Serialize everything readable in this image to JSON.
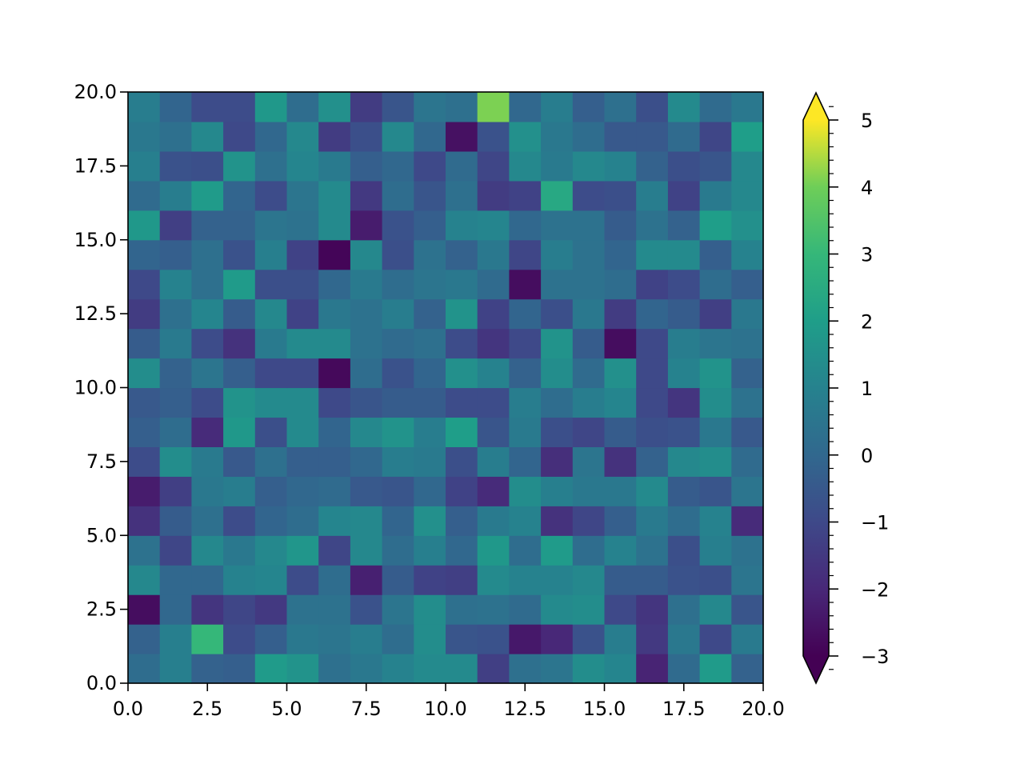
{
  "chart_data": {
    "type": "heatmap",
    "title": "",
    "xlabel": "",
    "ylabel": "",
    "x_range": [
      0,
      20
    ],
    "y_range": [
      0,
      20
    ],
    "grid": false,
    "x_ticks": [
      "0.0",
      "2.5",
      "5.0",
      "7.5",
      "10.0",
      "12.5",
      "15.0",
      "17.5",
      "20.0"
    ],
    "y_ticks": [
      "0.0",
      "2.5",
      "5.0",
      "7.5",
      "10.0",
      "12.5",
      "15.0",
      "17.5",
      "20.0"
    ],
    "colorbar": {
      "colormap": "viridis",
      "vmin": -3,
      "vmax": 5,
      "extend": "both",
      "ticks": [
        -3,
        -2,
        -1,
        0,
        1,
        2,
        3,
        4,
        5
      ],
      "tick_labels": [
        "−3",
        "−2",
        "−1",
        "0",
        "1",
        "2",
        "3",
        "4",
        "5"
      ]
    },
    "values": [
      [
        0.2,
        0.9,
        -0.2,
        -0.3,
        1.9,
        1.6,
        0.3,
        0.6,
        1.0,
        1.3,
        1.3,
        -1.3,
        0.3,
        0.5,
        1.4,
        1.1,
        -2.1,
        0.1,
        1.9,
        -0.2
      ],
      [
        -0.2,
        0.9,
        3.0,
        -0.9,
        -0.3,
        0.6,
        0.5,
        0.8,
        0.2,
        1.4,
        -0.6,
        -0.7,
        -2.4,
        -2.0,
        -0.7,
        0.8,
        -1.5,
        0.6,
        -1.0,
        0.7
      ],
      [
        -2.7,
        0.0,
        -1.6,
        -1.1,
        -1.5,
        0.4,
        0.4,
        -0.7,
        0.5,
        1.4,
        0.3,
        0.4,
        0.1,
        1.3,
        1.4,
        -1.0,
        -1.6,
        0.3,
        1.2,
        -0.6
      ],
      [
        1.2,
        0.0,
        0.0,
        1.0,
        1.1,
        -0.9,
        0.2,
        -2.2,
        -0.4,
        -1.2,
        -1.3,
        1.3,
        1.0,
        1.0,
        1.2,
        -0.4,
        -0.4,
        -0.7,
        -0.8,
        0.5
      ],
      [
        0.4,
        -1.1,
        1.2,
        0.6,
        1.2,
        1.7,
        -1.1,
        1.2,
        0.2,
        0.9,
        0.0,
        1.8,
        0.2,
        1.9,
        0.2,
        1.0,
        0.4,
        -0.8,
        0.9,
        0.4
      ],
      [
        -1.7,
        -0.4,
        0.3,
        -0.9,
        -0.1,
        0.2,
        1.1,
        1.2,
        -0.1,
        1.5,
        -0.3,
        0.7,
        1.0,
        -1.7,
        -1.1,
        -0.3,
        0.7,
        0.2,
        1.0,
        -1.9
      ],
      [
        -2.3,
        -1.3,
        0.6,
        0.8,
        -0.3,
        0.0,
        0.1,
        -0.5,
        -0.6,
        0.0,
        -1.2,
        -1.9,
        1.4,
        0.9,
        0.6,
        0.6,
        1.3,
        -0.4,
        -0.6,
        0.5
      ],
      [
        -0.9,
        1.4,
        0.7,
        -0.5,
        0.3,
        -0.3,
        -0.3,
        0.0,
        0.8,
        0.7,
        -0.8,
        0.8,
        -0.1,
        -1.8,
        0.5,
        -1.7,
        -0.2,
        1.2,
        1.4,
        0.1
      ],
      [
        -0.3,
        0.2,
        -1.9,
        1.8,
        -0.8,
        1.3,
        -0.1,
        1.2,
        1.6,
        0.8,
        2.0,
        -0.6,
        0.7,
        -0.8,
        -1.1,
        -0.4,
        -0.8,
        -0.7,
        0.6,
        -0.5
      ],
      [
        -0.5,
        -0.3,
        -0.9,
        1.6,
        1.3,
        1.3,
        -1.0,
        -0.6,
        -0.4,
        -0.4,
        -0.9,
        -0.9,
        0.8,
        0.2,
        0.8,
        1.1,
        -1.0,
        -1.6,
        1.4,
        0.4
      ],
      [
        1.4,
        -0.2,
        0.5,
        -0.3,
        -1.0,
        -1.0,
        -2.8,
        0.2,
        -0.7,
        -0.1,
        1.5,
        1.0,
        -0.2,
        1.4,
        0.1,
        1.5,
        -1.0,
        1.0,
        1.6,
        -0.2
      ],
      [
        -0.4,
        0.7,
        -0.9,
        -1.7,
        0.7,
        1.3,
        1.3,
        0.4,
        0.1,
        0.3,
        -0.9,
        -1.6,
        -1.0,
        1.6,
        -0.4,
        -2.7,
        -1.0,
        0.8,
        0.5,
        0.4
      ],
      [
        -1.4,
        0.3,
        1.1,
        -0.4,
        1.2,
        -1.2,
        0.6,
        0.4,
        0.8,
        -0.2,
        1.6,
        -1.2,
        -0.1,
        -0.8,
        0.6,
        -1.4,
        -0.1,
        -0.4,
        -1.3,
        0.6
      ],
      [
        -1.0,
        1.0,
        0.3,
        1.9,
        -0.8,
        -0.8,
        0.0,
        0.7,
        0.2,
        0.5,
        0.6,
        0.1,
        -2.7,
        0.4,
        0.4,
        0.2,
        -1.2,
        -0.9,
        0.2,
        -0.3
      ],
      [
        -0.1,
        -0.3,
        0.3,
        -0.7,
        0.9,
        -1.2,
        -2.9,
        1.2,
        -0.8,
        0.4,
        -0.2,
        0.6,
        -1.1,
        0.8,
        0.4,
        -0.1,
        1.3,
        1.3,
        -0.3,
        1.0
      ],
      [
        1.8,
        -1.3,
        -0.2,
        -0.2,
        0.5,
        0.4,
        1.3,
        -2.3,
        -0.7,
        -0.3,
        1.0,
        1.1,
        0.0,
        0.4,
        0.4,
        -0.4,
        0.4,
        -0.2,
        2.0,
        1.5
      ],
      [
        0.1,
        0.8,
        1.9,
        -0.1,
        -0.9,
        0.5,
        1.3,
        -1.5,
        0.2,
        -0.6,
        0.3,
        -1.4,
        -1.2,
        2.4,
        -0.9,
        -0.8,
        0.8,
        -1.2,
        0.7,
        1.2
      ],
      [
        0.9,
        -0.7,
        -0.8,
        1.6,
        0.3,
        1.1,
        0.7,
        -0.3,
        0.0,
        -1.0,
        0.1,
        -1.1,
        1.2,
        0.7,
        1.2,
        1.0,
        -0.2,
        -0.8,
        -0.6,
        1.2
      ],
      [
        0.6,
        0.3,
        1.2,
        -1.0,
        0.0,
        1.2,
        -1.4,
        -0.8,
        1.2,
        0.0,
        -2.6,
        -0.7,
        1.5,
        0.6,
        0.2,
        -0.5,
        -0.5,
        0.1,
        -1.1,
        2.0
      ],
      [
        0.8,
        -0.1,
        -0.9,
        -0.9,
        1.8,
        0.2,
        1.5,
        -1.4,
        -0.6,
        0.5,
        0.3,
        4.1,
        0.0,
        0.8,
        -0.3,
        0.3,
        -0.8,
        1.3,
        0.1,
        0.6
      ]
    ]
  }
}
